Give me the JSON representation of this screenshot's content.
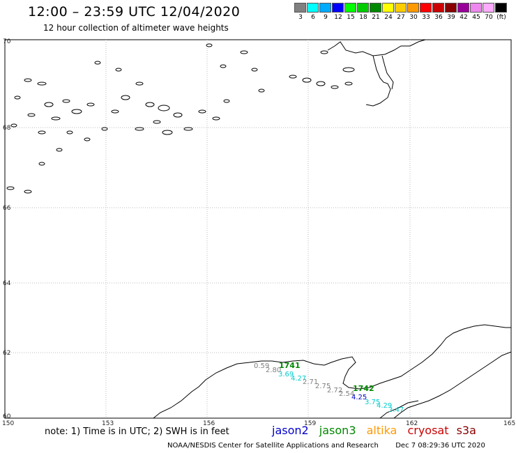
{
  "header": {
    "title": "12:00 – 23:59 UTC 12/04/2020",
    "subtitle": "12 hour collection of altimeter wave heights"
  },
  "legend": {
    "colors": [
      "#808080",
      "#00ffff",
      "#00aaff",
      "#0000ff",
      "#00ff00",
      "#00cc00",
      "#008800",
      "#ffff00",
      "#ffcc00",
      "#ff9900",
      "#ff0000",
      "#cc0000",
      "#880000",
      "#990099",
      "#ee88ee",
      "#ffaaff",
      "#000000"
    ],
    "labels": [
      "3",
      "6",
      "9",
      "12",
      "15",
      "18",
      "21",
      "24",
      "27",
      "30",
      "33",
      "36",
      "39",
      "42",
      "45",
      "70",
      "(ft)"
    ]
  },
  "map": {
    "lon_ticks": [
      "150",
      "153",
      "156",
      "159",
      "162",
      "165"
    ],
    "lat_ticks": [
      "70",
      "68",
      "66",
      "64",
      "62",
      "60"
    ],
    "track_labels": [
      {
        "text": "1741",
        "color": "#008800"
      },
      {
        "text": "1742",
        "color": "#008800"
      }
    ],
    "values": [
      {
        "text": "0.59",
        "color": "#808080"
      },
      {
        "text": "2.80",
        "color": "#808080"
      },
      {
        "text": "3.69",
        "color": "#00cccc"
      },
      {
        "text": "4.27",
        "color": "#00cccc"
      },
      {
        "text": "2.71",
        "color": "#808080"
      },
      {
        "text": "2.75",
        "color": "#808080"
      },
      {
        "text": "2.72",
        "color": "#808080"
      },
      {
        "text": "2.54",
        "color": "#808080"
      },
      {
        "text": "4.25",
        "color": "#0000cc"
      },
      {
        "text": "3.75",
        "color": "#00cccc"
      },
      {
        "text": "4.29",
        "color": "#00cccc"
      },
      {
        "text": "3.47",
        "color": "#00cccc"
      }
    ]
  },
  "note": "note: 1) Time is in UTC; 2) SWH is in feet",
  "satellites": [
    {
      "name": "jason2",
      "color": "#0000cc"
    },
    {
      "name": "jason3",
      "color": "#008800"
    },
    {
      "name": "altika",
      "color": "#ff9900"
    },
    {
      "name": "cryosat",
      "color": "#cc0000"
    },
    {
      "name": "s3a",
      "color": "#880000"
    }
  ],
  "footer": {
    "credit": "NOAA/NESDIS Center for Satellite Applications and Research",
    "timestamp": "Dec  7 08:29:36 UTC 2020"
  }
}
